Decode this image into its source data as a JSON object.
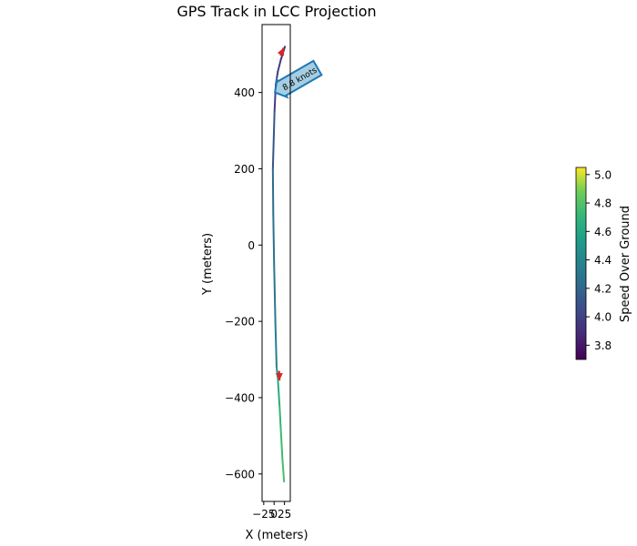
{
  "chart_data": {
    "type": "line",
    "title": "GPS Track in LCC Projection",
    "xlabel": "X (meters)",
    "ylabel": "Y (meters)",
    "xlim": [
      -29,
      39
    ],
    "ylim": [
      -672,
      578
    ],
    "x_ticks": [
      -25,
      0,
      25
    ],
    "x_tick_labels": [
      "−25",
      "0",
      "25"
    ],
    "y_ticks": [
      -600,
      -400,
      -200,
      0,
      200,
      400
    ],
    "y_tick_labels": [
      "−600",
      "−400",
      "−200",
      "0",
      "200",
      "400"
    ],
    "grid": false,
    "colormap": "viridis",
    "colorbar": {
      "label": "Speed Over Ground",
      "range": [
        3.7,
        5.05
      ],
      "ticks": [
        3.8,
        4.0,
        4.2,
        4.4,
        4.6,
        4.8,
        5.0
      ],
      "tick_labels": [
        "3.8",
        "4.0",
        "4.2",
        "4.4",
        "4.6",
        "4.8",
        "5.0"
      ]
    },
    "track": {
      "x": [
        26,
        16,
        9,
        4,
        1,
        -3,
        -2,
        0,
        3,
        6,
        9,
        13,
        16,
        20,
        24
      ],
      "y": [
        520,
        485,
        455,
        420,
        350,
        200,
        80,
        -50,
        -200,
        -320,
        -350,
        -420,
        -480,
        -560,
        -620
      ],
      "speed": [
        3.85,
        3.95,
        3.98,
        3.96,
        4.02,
        4.2,
        4.25,
        4.28,
        4.32,
        4.38,
        4.6,
        4.68,
        4.72,
        4.75,
        4.78
      ]
    },
    "arrows": [
      {
        "x": [
          15,
          23
        ],
        "y": [
          497,
          517
        ],
        "color": "#d62728"
      },
      {
        "x": [
          12,
          13
        ],
        "y": [
          -330,
          -355
        ],
        "color": "#d62728"
      }
    ],
    "annotation": {
      "text": "8.8 knots",
      "x": 2,
      "y": 400,
      "fill": "#a6cee3",
      "edge": "#1f78b4",
      "rotation_deg": -30
    }
  }
}
